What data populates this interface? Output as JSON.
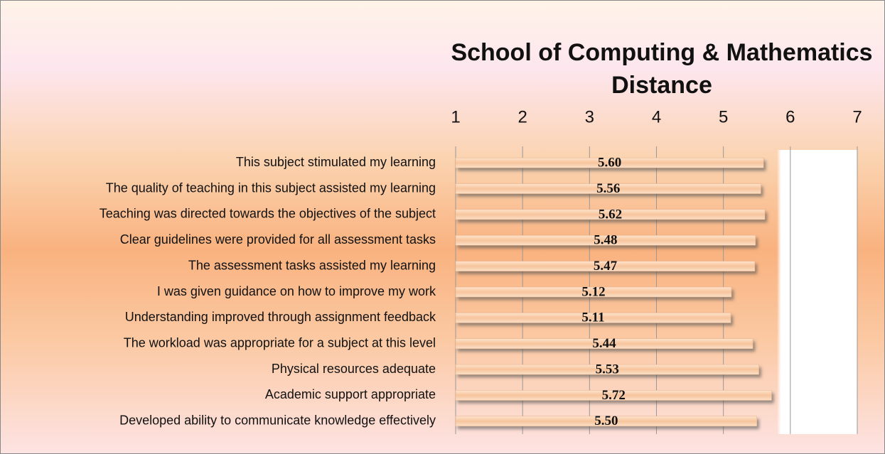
{
  "chart_data": {
    "type": "bar",
    "orientation": "horizontal",
    "title": "School of Computing & Mathematics\nDistance",
    "categories": [
      "This subject stimulated my learning",
      "The quality of teaching in this subject assisted my learning",
      "Teaching was directed towards the objectives of the subject",
      "Clear guidelines were provided for all assessment tasks",
      "The assessment tasks assisted my learning",
      "I was given guidance on how to improve my work",
      "Understanding improved through assignment feedback",
      "The workload was appropriate for a subject at this level",
      "Physical resources adequate",
      "Academic support appropriate",
      "Developed ability to communicate knowledge effectively"
    ],
    "values": [
      5.6,
      5.56,
      5.62,
      5.48,
      5.47,
      5.12,
      5.11,
      5.44,
      5.53,
      5.72,
      5.5
    ],
    "value_labels": [
      "5.60",
      "5.56",
      "5.62",
      "5.48",
      "5.47",
      "5.12",
      "5.11",
      "5.44",
      "5.53",
      "5.72",
      "5.50"
    ],
    "color": "#f7c9a0",
    "xlim": [
      1,
      7
    ],
    "xticks": [
      1,
      2,
      3,
      4,
      5,
      6,
      7
    ],
    "grid": true
  }
}
